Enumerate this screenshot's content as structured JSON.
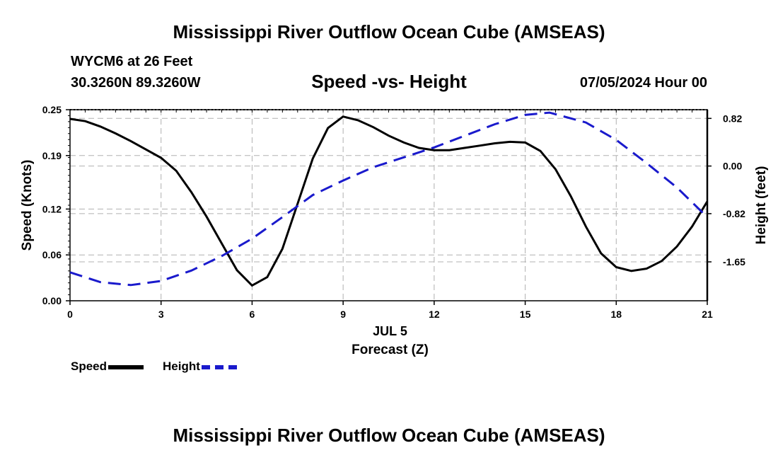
{
  "header": {
    "title": "Mississippi River Outflow Ocean Cube (AMSEAS)",
    "station": "WYCM6 at 26 Feet",
    "coords": "30.3260N  89.3260W",
    "subtitle": "Speed -vs- Height",
    "datetime": "07/05/2024 Hour 00"
  },
  "footer": {
    "title": "Mississippi River Outflow Ocean Cube (AMSEAS)"
  },
  "legend": {
    "speed_label": "Speed",
    "height_label": "Height"
  },
  "colors": {
    "speed": "#000000",
    "height": "#1a1acc",
    "grid": "#b0b0b0"
  },
  "chart_data": {
    "type": "line",
    "title": "Speed -vs- Height",
    "xlabel": "Forecast (Z)",
    "xlabel_date": "JUL 5",
    "ylabel": "Speed (Knots)",
    "y2label": "Height (feet)",
    "xlim": [
      0,
      21
    ],
    "ylim": [
      0,
      0.25
    ],
    "y2lim": [
      -2.32,
      0.97
    ],
    "xticks": [
      0,
      3,
      6,
      9,
      12,
      15,
      18,
      21
    ],
    "yticks": [
      0.0,
      0.06,
      0.12,
      0.19,
      0.25
    ],
    "ytick_labels": [
      "0.00",
      "0.06",
      "0.12",
      "0.19",
      "0.25"
    ],
    "y2ticks": [
      0.82,
      0.0,
      -0.82,
      -1.65
    ],
    "y2tick_labels": [
      "0.82",
      "0.00",
      "-0.82",
      "-1.65"
    ],
    "grid": true,
    "series": [
      {
        "name": "Speed",
        "axis": "left",
        "style": "solid",
        "x": [
          0,
          0.5,
          1,
          1.5,
          2,
          2.5,
          3,
          3.5,
          4,
          4.5,
          5,
          5.5,
          6,
          6.5,
          7,
          7.5,
          8,
          8.5,
          9,
          9.5,
          10,
          10.5,
          11,
          11.5,
          12,
          12.5,
          13,
          13.5,
          14,
          14.5,
          15,
          15.5,
          16,
          16.5,
          17,
          17.5,
          18,
          18.5,
          19,
          19.5,
          20,
          20.5,
          21
        ],
        "values": [
          0.238,
          0.235,
          0.228,
          0.219,
          0.209,
          0.198,
          0.187,
          0.17,
          0.142,
          0.11,
          0.075,
          0.04,
          0.02,
          0.031,
          0.068,
          0.127,
          0.186,
          0.226,
          0.241,
          0.236,
          0.227,
          0.216,
          0.207,
          0.2,
          0.197,
          0.197,
          0.2,
          0.203,
          0.206,
          0.208,
          0.207,
          0.196,
          0.172,
          0.137,
          0.097,
          0.062,
          0.044,
          0.039,
          0.042,
          0.052,
          0.071,
          0.097,
          0.13
        ]
      },
      {
        "name": "Height",
        "axis": "right",
        "style": "dashed",
        "x": [
          0,
          1,
          2,
          3,
          4,
          5,
          6,
          7,
          8,
          9,
          10,
          11,
          12,
          13,
          14,
          15,
          15.8,
          17,
          18,
          19,
          20,
          21
        ],
        "values": [
          -1.83,
          -2.0,
          -2.05,
          -1.98,
          -1.8,
          -1.55,
          -1.25,
          -0.88,
          -0.5,
          -0.25,
          -0.02,
          0.15,
          0.32,
          0.52,
          0.72,
          0.88,
          0.92,
          0.75,
          0.45,
          0.05,
          -0.37,
          -0.88
        ]
      }
    ]
  }
}
